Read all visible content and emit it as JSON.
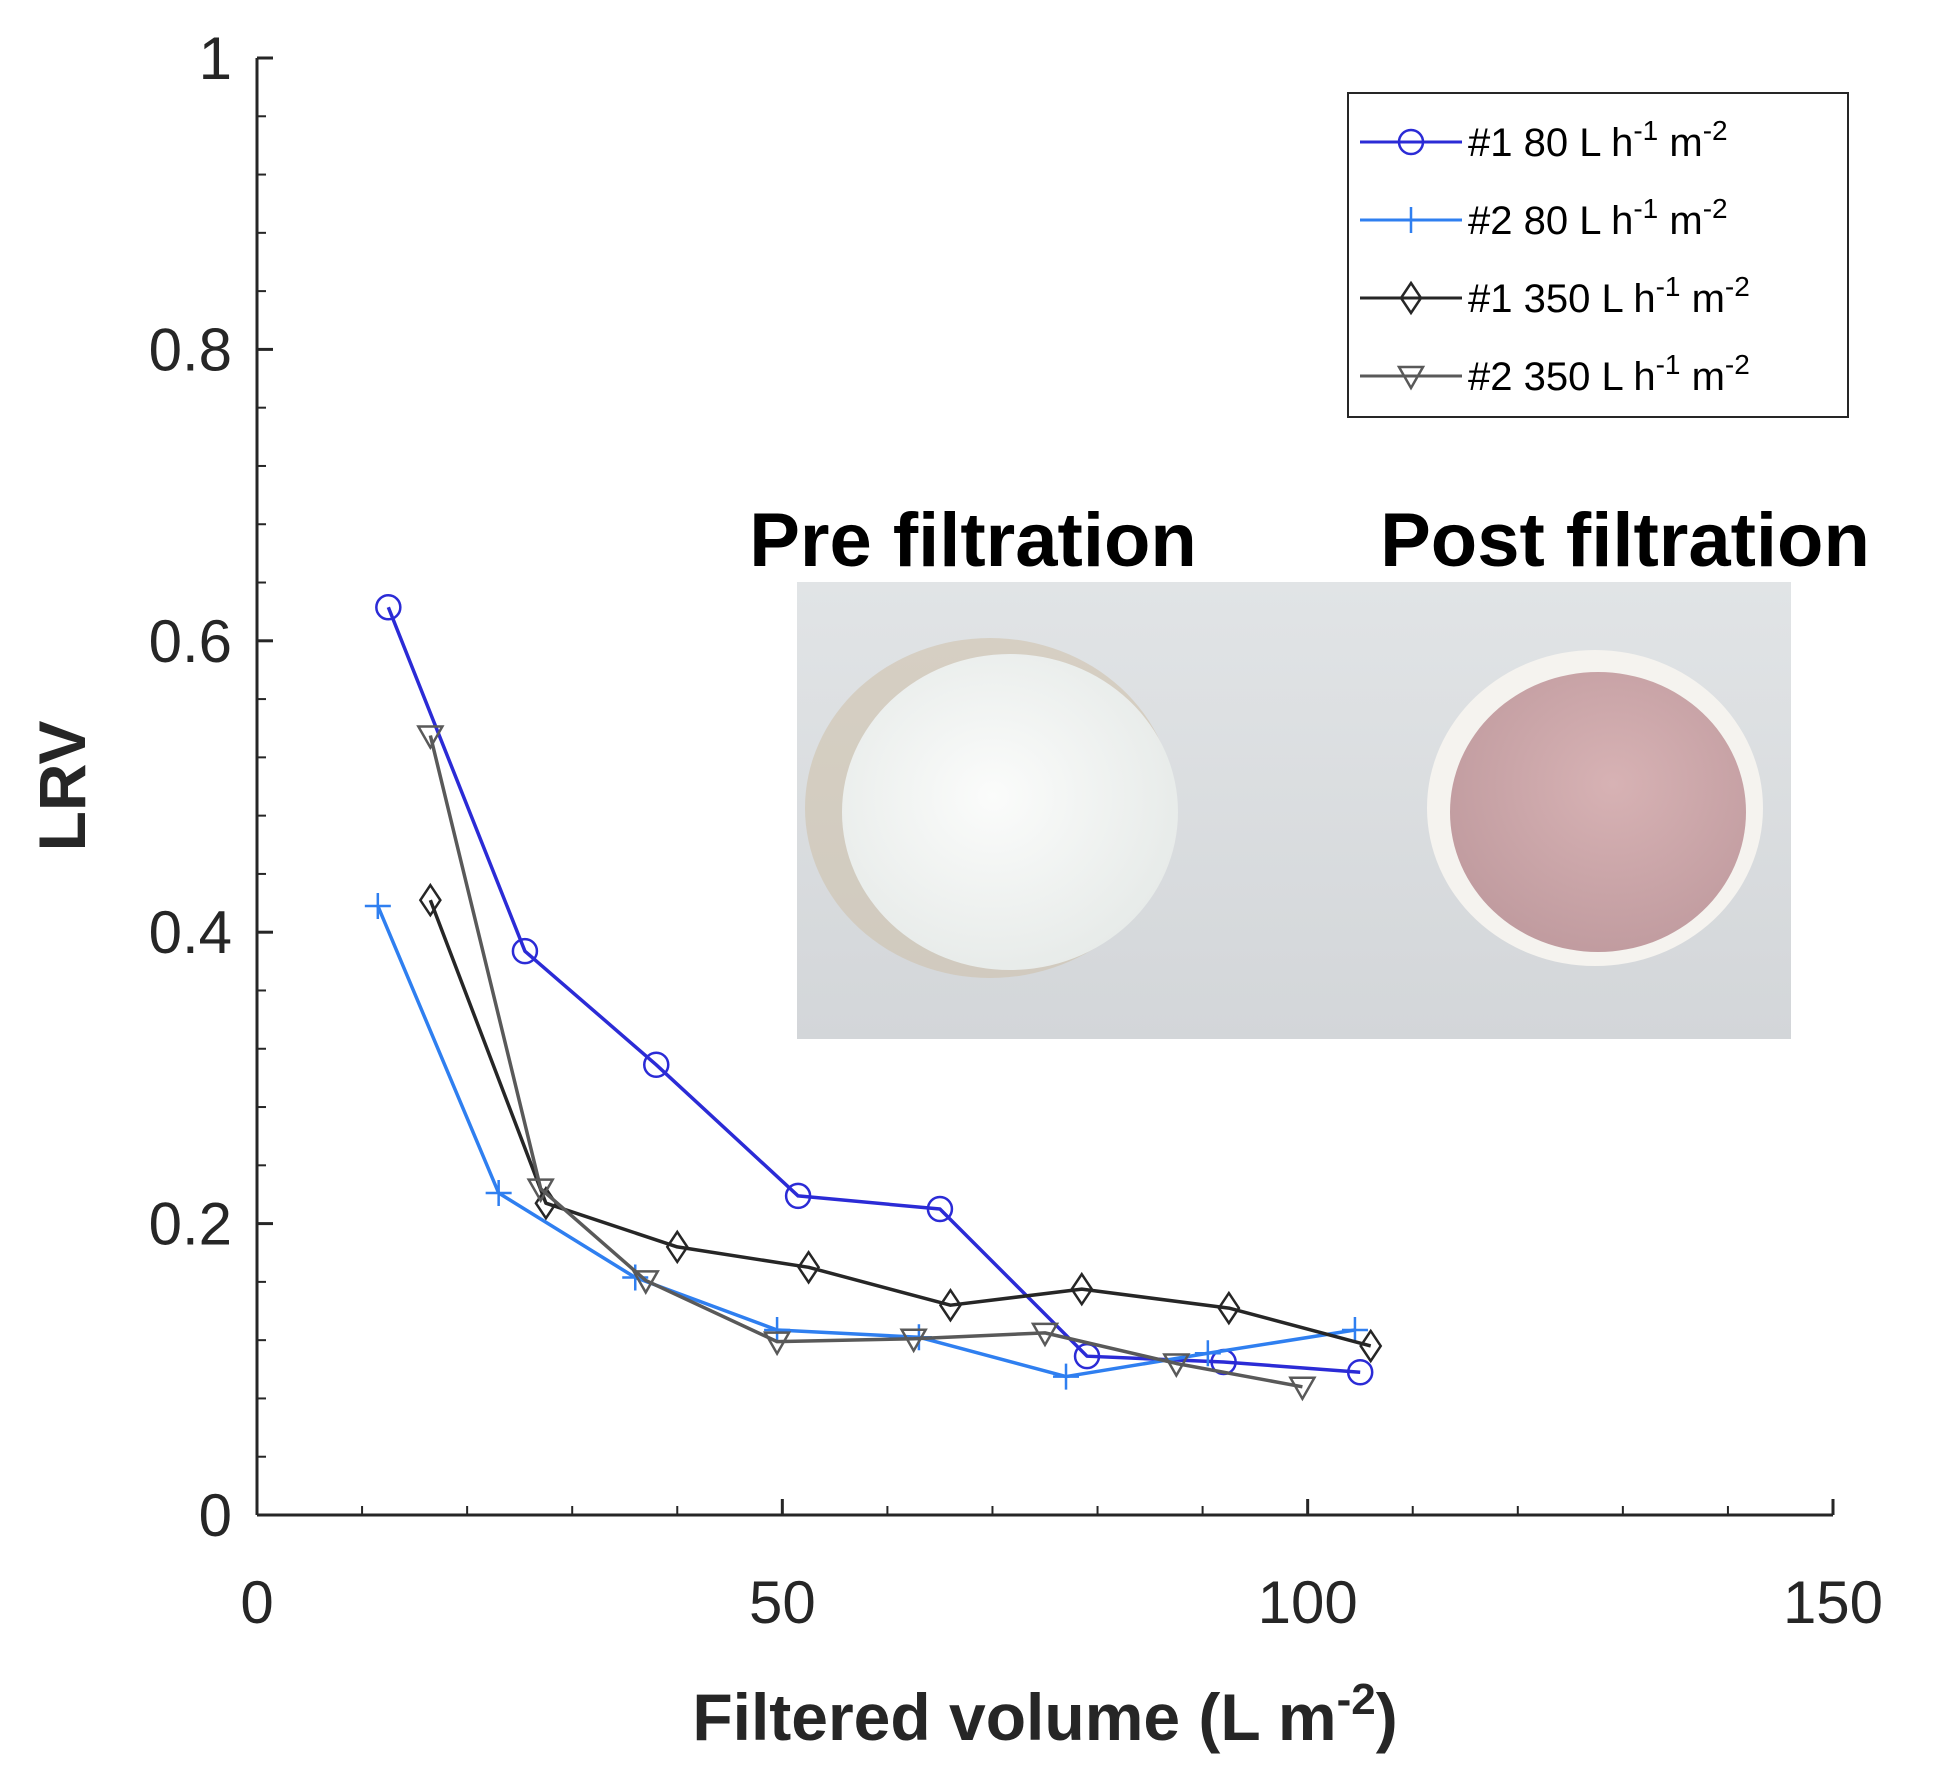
{
  "chart_data": {
    "type": "line",
    "title": "",
    "xlabel": "Filtered volume (L m",
    "xlabel_sup": "-2",
    "xlabel_end": ")",
    "ylabel": "LRV",
    "xlim": [
      0,
      150
    ],
    "ylim": [
      0,
      1
    ],
    "xticks": [
      0,
      50,
      100,
      150
    ],
    "yticks": [
      0,
      0.2,
      0.4,
      0.6,
      0.8,
      1
    ],
    "xtick_labels": [
      "0",
      "50",
      "100",
      "150"
    ],
    "ytick_labels": [
      "0",
      "0.2",
      "0.4",
      "0.6",
      "0.8",
      "1"
    ],
    "grid": false,
    "legend_position": "top-right",
    "series": [
      {
        "name": "#1 80 L h-1 m-2",
        "legend_main": "#1 80 L h",
        "legend_sup1": "-1",
        "legend_mid": " m",
        "legend_sup2": "-2",
        "color": "#2b2bd6",
        "marker": "circle",
        "x": [
          12.5,
          25.5,
          38,
          51.5,
          65,
          79,
          92,
          105
        ],
        "y": [
          0.623,
          0.387,
          0.309,
          0.219,
          0.21,
          0.109,
          0.105,
          0.098
        ]
      },
      {
        "name": "#2 80 L h-1 m-2",
        "legend_main": "#2 80 L h",
        "legend_sup1": "-1",
        "legend_mid": " m",
        "legend_sup2": "-2",
        "color": "#2f7ff0",
        "marker": "plus",
        "x": [
          11.5,
          23,
          36,
          49.5,
          63,
          77,
          90.5,
          104.5
        ],
        "y": [
          0.418,
          0.221,
          0.163,
          0.127,
          0.122,
          0.095,
          0.111,
          0.127
        ]
      },
      {
        "name": "#1 350 L h-1 m-2",
        "legend_main": "#1 350 L h",
        "legend_sup1": "-1",
        "legend_mid": " m",
        "legend_sup2": "-2",
        "color": "#262626",
        "marker": "diamond",
        "x": [
          16.5,
          27.5,
          40,
          52.5,
          66,
          78.5,
          92.5,
          106
        ],
        "y": [
          0.422,
          0.214,
          0.184,
          0.17,
          0.144,
          0.155,
          0.142,
          0.116
        ]
      },
      {
        "name": "#2 350 L h-1 m-2",
        "legend_main": "#2 350 L h",
        "legend_sup1": "-1",
        "legend_mid": " m",
        "legend_sup2": "-2",
        "color": "#595959",
        "marker": "triangle-down",
        "x": [
          16.5,
          27,
          37,
          49.5,
          62.5,
          75,
          87.5,
          99.5
        ],
        "y": [
          0.535,
          0.224,
          0.161,
          0.119,
          0.121,
          0.125,
          0.104,
          0.088
        ]
      }
    ]
  },
  "inset": {
    "label_pre": "Pre filtration",
    "label_post": "Post filtration",
    "background_color": "#d9dcdf",
    "pre_disc_color": "#f3f5f3",
    "post_disc_color": "#c9a3a6",
    "post_rim_color": "#f6f4f1"
  }
}
